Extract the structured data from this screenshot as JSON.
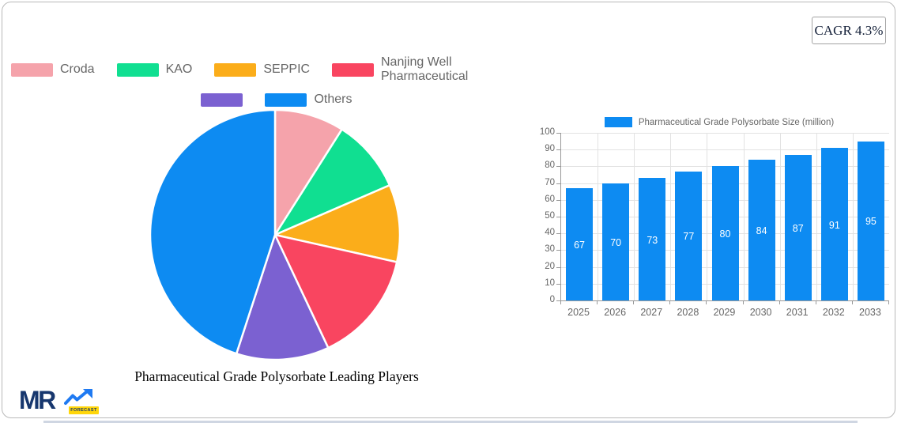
{
  "cagr_badge": {
    "label": "CAGR 4.3%"
  },
  "logo": {
    "name": "MR",
    "badge": "FORECAST"
  },
  "colors": {
    "accent_blue": "#0D8BF2",
    "logo_navy": "#17376E",
    "logo_arrow_blue": "#1F7AF2",
    "logo_badge_yellow": "#FFD60A"
  },
  "chart_data": [
    {
      "type": "pie",
      "title": "Pharmaceutical Grade Polysorbate Leading Players",
      "labels": [
        "Croda",
        "KAO",
        "SEPPIC",
        "Nanjing Well Pharmaceutical",
        "",
        "Others"
      ],
      "values": [
        9,
        9.5,
        10,
        14.5,
        12,
        45
      ],
      "colors": [
        "#F5A3AB",
        "#10DF91",
        "#FBAD1A",
        "#F94560",
        "#7B61D1",
        "#0D8BF2"
      ],
      "legend_position": "top",
      "legend_rows": [
        [
          0,
          1,
          2,
          3
        ],
        [
          4,
          5
        ]
      ],
      "start_angle_deg": -90,
      "direction": "clockwise"
    },
    {
      "type": "bar",
      "legend_label": "Pharmaceutical Grade Polysorbate Size (million)",
      "categories": [
        "2025",
        "2026",
        "2027",
        "2028",
        "2029",
        "2030",
        "2031",
        "2032",
        "2033"
      ],
      "values": [
        67,
        70,
        73,
        77,
        80,
        84,
        87,
        91,
        95
      ],
      "bar_color": "#0D8BF2",
      "ylim": [
        0,
        100
      ],
      "ytick_step": 10,
      "grid": true,
      "legend_position": "top",
      "value_label_color": "#FFFFFF",
      "value_label_position": "inside-center"
    }
  ]
}
